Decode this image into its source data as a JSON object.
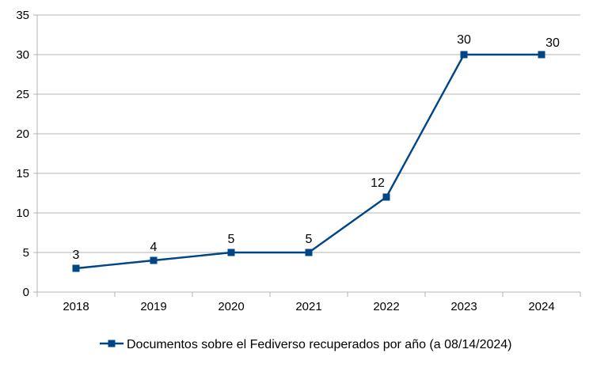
{
  "chart_data": {
    "type": "line",
    "categories": [
      "2018",
      "2019",
      "2020",
      "2021",
      "2022",
      "2023",
      "2024"
    ],
    "series": [
      {
        "name": "Documentos sobre el Fediverso recuperados por año (a 08/14/2024)",
        "values": [
          3,
          4,
          5,
          5,
          12,
          30,
          30
        ],
        "color": "#004586",
        "marker": "square"
      }
    ],
    "title": "",
    "xlabel": "",
    "ylabel": "",
    "ylim": [
      0,
      35
    ],
    "yticks": [
      "0",
      "5",
      "10",
      "15",
      "20",
      "25",
      "30",
      "35"
    ],
    "grid": true,
    "legend": "bottom-center",
    "data_labels": [
      "3",
      "4",
      "5",
      "5",
      "12",
      "30",
      "30"
    ]
  }
}
